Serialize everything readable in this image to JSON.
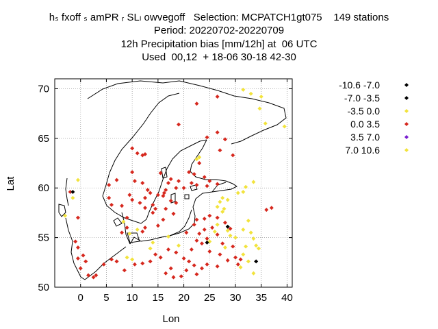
{
  "header": {
    "line1": "hₛ fxoff ₛ amPR ᵣ SLₗ owvegoff   Selection: MCPATCH1gt075    149 stations",
    "line2": "Period: 20220702-20220709",
    "line3": "12h Precipitation bias [mm/12h] at  06 UTC",
    "line4": "Used  00,12  + 18-06 30-18 42-30"
  },
  "chart_data": {
    "type": "scatter",
    "xlabel": "Lon",
    "ylabel": "Lat",
    "xlim": [
      -5,
      41
    ],
    "ylim": [
      50,
      71
    ],
    "xticks": [
      "0",
      "5",
      "10",
      "15",
      "20",
      "25",
      "30",
      "35",
      "40"
    ],
    "yticks": [
      "50",
      "55",
      "60",
      "65",
      "70"
    ],
    "grid": true,
    "legend_position": "right",
    "classes": [
      {
        "label": "-10.6 -7.0",
        "color": "#000000"
      },
      {
        "label": "-7.0 -3.5",
        "color": "#000000"
      },
      {
        "label": "-3.5 0.0",
        "color": "#f2e33c"
      },
      {
        "label": "0.0 3.5",
        "color": "#d6281e"
      },
      {
        "label": "3.5 7.0",
        "color": "#7a1fd0"
      },
      {
        "label": "7.0 10.6",
        "color": "#f2e33c"
      }
    ],
    "series": [
      {
        "class": 2,
        "points": [
          [
            31.5,
            69.9
          ],
          [
            33.0,
            69.5
          ],
          [
            35.0,
            69.2
          ],
          [
            34.7,
            68.0
          ],
          [
            35.8,
            66.5
          ],
          [
            39.5,
            66.2
          ],
          [
            22.5,
            62.9
          ],
          [
            23.0,
            63.1
          ],
          [
            27.0,
            58.6
          ],
          [
            27.5,
            59.0
          ],
          [
            28.5,
            58.8
          ],
          [
            27.5,
            57.6
          ],
          [
            26.5,
            58.1
          ],
          [
            27.8,
            57.9
          ],
          [
            30.5,
            59.5
          ],
          [
            31.5,
            59.6
          ],
          [
            32.0,
            60.1
          ],
          [
            33.5,
            60.6
          ],
          [
            -1.5,
            59.0
          ],
          [
            -0.5,
            60.8
          ],
          [
            -3.0,
            57.2
          ],
          [
            8.3,
            56.6
          ],
          [
            9.5,
            55.4
          ],
          [
            9.0,
            53.0
          ],
          [
            10.0,
            52.8
          ],
          [
            17.0,
            55.1
          ],
          [
            26.5,
            56.3
          ],
          [
            28.5,
            55.7
          ],
          [
            29.0,
            55.2
          ],
          [
            30.0,
            55.0
          ],
          [
            31.5,
            55.8
          ],
          [
            32.5,
            56.7
          ],
          [
            33.0,
            55.5
          ],
          [
            33.5,
            54.9
          ],
          [
            34.0,
            54.2
          ],
          [
            34.5,
            53.9
          ],
          [
            32.0,
            54.1
          ],
          [
            31.5,
            53.3
          ],
          [
            32.5,
            52.6
          ],
          [
            31.0,
            52.0
          ],
          [
            33.5,
            51.4
          ],
          [
            26.0,
            55.6
          ],
          [
            25.0,
            54.6
          ],
          [
            28.0,
            54.0
          ],
          [
            13.5,
            53.9
          ],
          [
            14.0,
            54.5
          ],
          [
            19.0,
            54.2
          ],
          [
            11.0,
            55.8
          ]
        ]
      },
      {
        "class": 3,
        "points": [
          [
            22.5,
            68.5
          ],
          [
            26.5,
            69.2
          ],
          [
            19.0,
            66.4
          ],
          [
            26.5,
            65.6
          ],
          [
            24.5,
            65.1
          ],
          [
            28.0,
            64.9
          ],
          [
            27.0,
            63.8
          ],
          [
            29.5,
            63.3
          ],
          [
            23.0,
            62.5
          ],
          [
            21.0,
            61.6
          ],
          [
            22.0,
            61.4
          ],
          [
            24.0,
            61.1
          ],
          [
            25.0,
            60.7
          ],
          [
            26.5,
            60.4
          ],
          [
            24.5,
            60.2
          ],
          [
            22.5,
            60.3
          ],
          [
            21.5,
            60.5
          ],
          [
            20.0,
            60.0
          ],
          [
            19.0,
            60.7
          ],
          [
            18.5,
            60.0
          ],
          [
            17.0,
            60.5
          ],
          [
            17.5,
            60.9
          ],
          [
            15.5,
            61.5
          ],
          [
            16.5,
            59.8
          ],
          [
            15.0,
            59.3
          ],
          [
            13.5,
            59.5
          ],
          [
            14.0,
            58.3
          ],
          [
            16.0,
            59.2
          ],
          [
            17.5,
            58.7
          ],
          [
            18.5,
            58.5
          ],
          [
            16.5,
            57.9
          ],
          [
            16.0,
            56.8
          ],
          [
            14.0,
            57.5
          ],
          [
            12.5,
            58.0
          ],
          [
            11.5,
            58.5
          ],
          [
            12.5,
            59.0
          ],
          [
            13.0,
            59.8
          ],
          [
            12.0,
            60.5
          ],
          [
            10.5,
            60.7
          ],
          [
            10.0,
            61.6
          ],
          [
            11.0,
            63.5
          ],
          [
            12.0,
            63.3
          ],
          [
            12.5,
            63.4
          ],
          [
            10.0,
            64.0
          ],
          [
            7.0,
            60.8
          ],
          [
            5.5,
            60.3
          ],
          [
            5.5,
            59.0
          ],
          [
            6.0,
            58.3
          ],
          [
            8.0,
            58.2
          ],
          [
            9.5,
            59.3
          ],
          [
            10.0,
            58.8
          ],
          [
            -2.0,
            59.6
          ],
          [
            -0.5,
            57.0
          ],
          [
            -1.0,
            54.6
          ],
          [
            -0.5,
            54.0
          ],
          [
            0.5,
            53.2
          ],
          [
            1.0,
            52.6
          ],
          [
            -0.5,
            52.9
          ],
          [
            0.0,
            51.9
          ],
          [
            1.5,
            51.2
          ],
          [
            2.5,
            51.0
          ],
          [
            3.0,
            51.2
          ],
          [
            4.5,
            52.3
          ],
          [
            6.0,
            52.8
          ],
          [
            7.0,
            52.6
          ],
          [
            8.5,
            51.7
          ],
          [
            10.5,
            52.3
          ],
          [
            12.0,
            52.4
          ],
          [
            13.5,
            52.6
          ],
          [
            14.5,
            53.3
          ],
          [
            15.5,
            53.0
          ],
          [
            17.0,
            53.8
          ],
          [
            18.5,
            53.5
          ],
          [
            20.0,
            52.9
          ],
          [
            21.0,
            52.6
          ],
          [
            22.0,
            52.2
          ],
          [
            21.5,
            53.8
          ],
          [
            22.5,
            54.7
          ],
          [
            23.0,
            55.4
          ],
          [
            24.0,
            55.8
          ],
          [
            24.5,
            54.9
          ],
          [
            23.5,
            54.4
          ],
          [
            22.0,
            56.3
          ],
          [
            22.5,
            56.8
          ],
          [
            24.0,
            56.9
          ],
          [
            25.0,
            57.2
          ],
          [
            26.5,
            57.0
          ],
          [
            25.5,
            56.0
          ],
          [
            26.5,
            55.3
          ],
          [
            27.5,
            54.4
          ],
          [
            25.0,
            53.6
          ],
          [
            27.0,
            53.3
          ],
          [
            28.5,
            52.7
          ],
          [
            26.5,
            52.1
          ],
          [
            24.5,
            52.3
          ],
          [
            23.5,
            51.9
          ],
          [
            22.5,
            51.3
          ],
          [
            20.5,
            51.7
          ],
          [
            19.5,
            51.1
          ],
          [
            18.0,
            51.0
          ],
          [
            16.5,
            51.4
          ],
          [
            17.5,
            51.9
          ],
          [
            29.5,
            54.1
          ],
          [
            30.0,
            53.0
          ],
          [
            30.5,
            52.3
          ],
          [
            31.0,
            52.8
          ],
          [
            37.0,
            58.0
          ],
          [
            36.0,
            57.8
          ],
          [
            29.0,
            55.9
          ],
          [
            28.0,
            56.5
          ],
          [
            9.0,
            57.0
          ],
          [
            12.0,
            55.6
          ],
          [
            12.5,
            56.0
          ],
          [
            18.0,
            57.4
          ],
          [
            20.5,
            55.5
          ],
          [
            15.0,
            56.2
          ],
          [
            14.5,
            57.9
          ],
          [
            16.2,
            59.5
          ],
          [
            8.0,
            55.5
          ],
          [
            9.0,
            56.0
          ]
        ]
      },
      {
        "class": 1,
        "points": [
          [
            -1.5,
            59.6
          ],
          [
            24.5,
            54.5
          ],
          [
            28.5,
            56.1
          ],
          [
            34.0,
            52.6
          ]
        ]
      },
      {
        "class": 4,
        "points": []
      }
    ]
  }
}
